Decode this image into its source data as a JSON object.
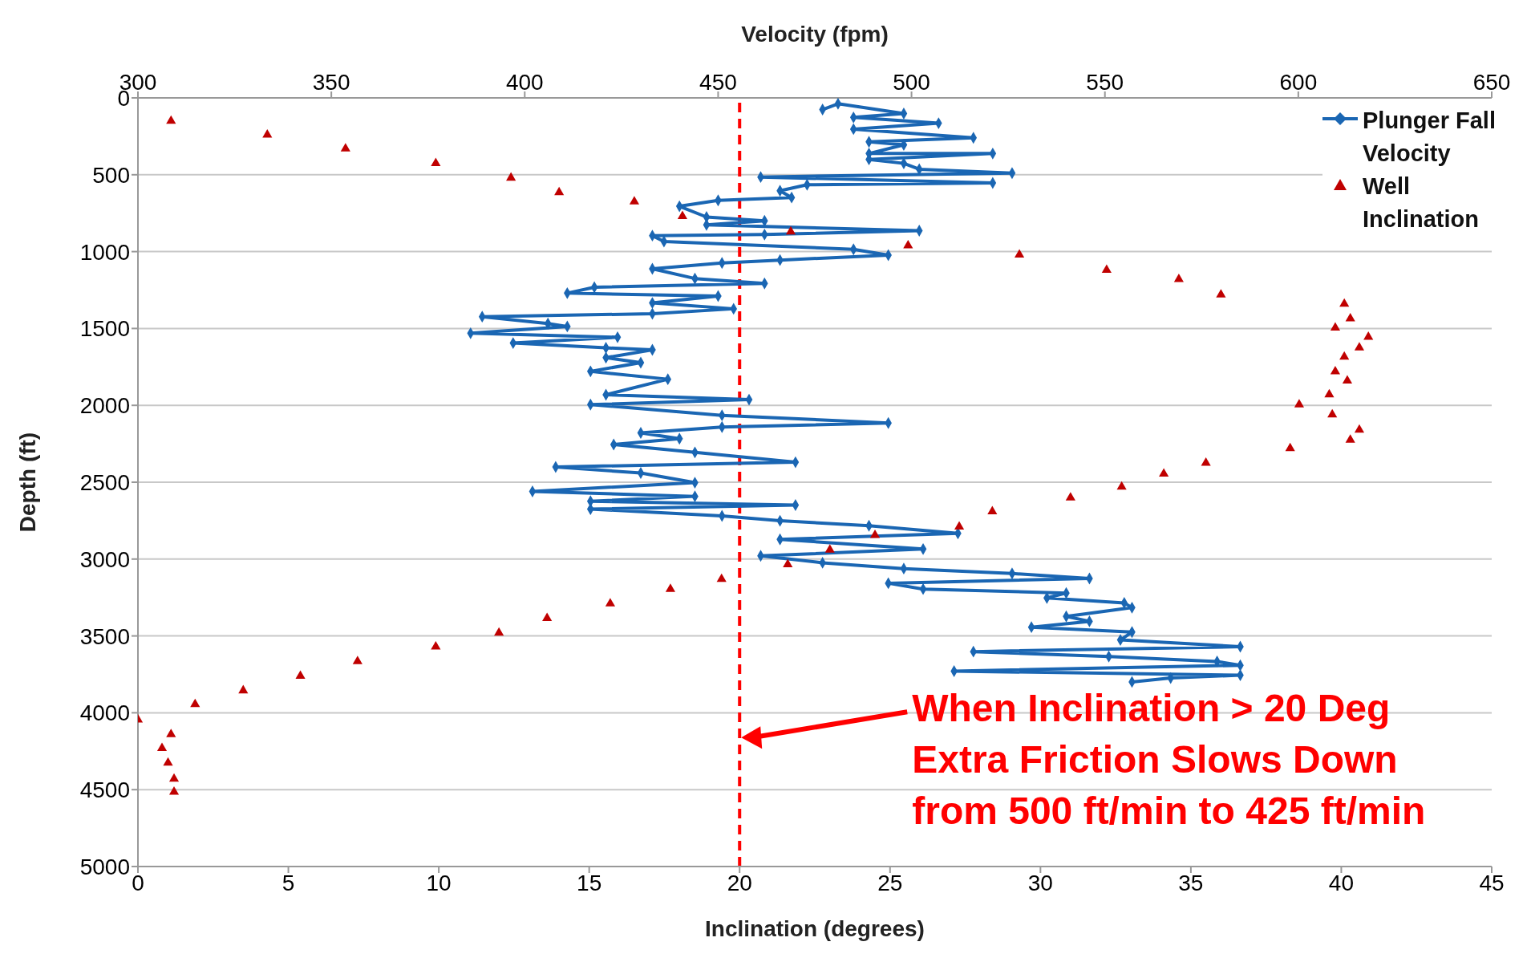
{
  "chart_data": {
    "type": "scatter",
    "xlabel": "Inclination (degrees)",
    "x2label": "Velocity (fpm)",
    "ylabel": "Depth (ft)",
    "xlim": [
      0,
      45
    ],
    "xticks": [
      0,
      5,
      10,
      15,
      20,
      25,
      30,
      35,
      40,
      45
    ],
    "x2lim": [
      300,
      650
    ],
    "x2ticks": [
      300,
      350,
      400,
      450,
      500,
      550,
      600,
      650
    ],
    "ylim": [
      5000,
      0
    ],
    "yticks": [
      0,
      500,
      1000,
      1500,
      2000,
      2500,
      3000,
      3500,
      4000,
      4500,
      5000
    ],
    "grid": "y",
    "legend": "top right",
    "series": [
      {
        "name": "Plunger Fall Velocity",
        "type": "line",
        "axis": "x2",
        "marker": "diamond",
        "line_style": "solid",
        "color": "#1a66b3",
        "x": [
          477,
          481,
          498,
          485,
          507,
          485,
          516,
          489,
          498,
          489,
          521,
          489,
          498,
          502,
          526,
          461,
          521,
          473,
          466,
          469,
          450,
          440,
          447,
          462,
          447,
          502,
          462,
          433,
          436,
          485,
          494,
          466,
          451,
          433,
          444,
          462,
          418,
          411,
          450,
          433,
          454,
          433,
          389,
          406,
          411,
          386,
          424,
          397,
          421,
          433,
          421,
          430,
          417,
          437,
          421,
          458,
          417,
          451,
          494,
          451,
          430,
          440,
          423,
          444,
          470,
          408,
          430,
          444,
          402,
          444,
          417,
          470,
          417,
          451,
          466,
          489,
          512,
          466,
          503,
          461,
          477,
          498,
          526,
          546,
          494,
          503,
          540,
          535,
          555,
          557,
          540,
          546,
          531,
          557,
          554,
          585,
          516,
          551,
          579,
          585,
          511,
          585,
          567,
          557
        ],
        "values": [
          76,
          38,
          102,
          127,
          165,
          203,
          260,
          286,
          305,
          362,
          362,
          400,
          426,
          464,
          489,
          515,
          553,
          565,
          604,
          648,
          667,
          705,
          775,
          800,
          826,
          864,
          889,
          896,
          934,
          985,
          1023,
          1055,
          1074,
          1112,
          1175,
          1207,
          1232,
          1270,
          1289,
          1334,
          1372,
          1404,
          1423,
          1468,
          1487,
          1531,
          1557,
          1595,
          1626,
          1639,
          1690,
          1722,
          1779,
          1830,
          1931,
          1963,
          1995,
          2065,
          2115,
          2141,
          2179,
          2217,
          2255,
          2306,
          2370,
          2401,
          2440,
          2503,
          2560,
          2592,
          2624,
          2649,
          2675,
          2719,
          2751,
          2783,
          2833,
          2872,
          2935,
          2979,
          3024,
          3062,
          3094,
          3126,
          3157,
          3195,
          3221,
          3253,
          3285,
          3316,
          3373,
          3405,
          3443,
          3475,
          3526,
          3570,
          3602,
          3634,
          3666,
          3691,
          3729,
          3755,
          3774,
          3799
        ]
      },
      {
        "name": "Well Inclination",
        "marker": "triangle",
        "color": "#c00000",
        "x": [
          1.1,
          4.3,
          6.9,
          9.9,
          12.4,
          14.0,
          16.5,
          18.1,
          21.7,
          25.6,
          29.3,
          32.2,
          34.6,
          36.0,
          40.1,
          40.3,
          39.8,
          40.9,
          40.6,
          40.1,
          39.8,
          40.2,
          39.6,
          38.6,
          39.7,
          40.6,
          40.3,
          38.3,
          35.5,
          34.1,
          32.7,
          31.0,
          28.4,
          27.3,
          24.5,
          23.0,
          21.6,
          19.4,
          17.7,
          15.7,
          13.6,
          12.0,
          9.9,
          7.3,
          5.4,
          3.5,
          1.9,
          0,
          1.1,
          0.8,
          1.0,
          1.2,
          1.2
        ],
        "values": [
          150,
          240,
          330,
          425,
          520,
          615,
          675,
          770,
          870,
          960,
          1020,
          1120,
          1180,
          1280,
          1340,
          1435,
          1495,
          1555,
          1625,
          1685,
          1780,
          1840,
          1930,
          1995,
          2060,
          2160,
          2225,
          2280,
          2375,
          2445,
          2530,
          2600,
          2690,
          2790,
          2845,
          2940,
          3035,
          3130,
          3195,
          3290,
          3385,
          3480,
          3570,
          3665,
          3760,
          3855,
          3945,
          4045,
          4140,
          4230,
          4325,
          4430,
          4515
        ]
      }
    ],
    "ref_lines": [
      {
        "axis": "x",
        "value": 20,
        "color": "#ff0000",
        "line_style": "dashed"
      }
    ],
    "annotations": [
      "When Inclination > 20 Deg\nExtra Friction Slows Down\nfrom 500 ft/min to 425 ft/min"
    ]
  }
}
